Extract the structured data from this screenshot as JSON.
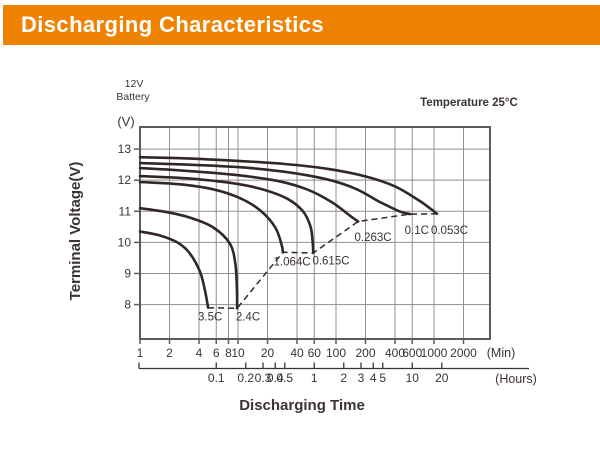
{
  "banner": {
    "title": "Discharging Characteristics"
  },
  "colors": {
    "accent": "#ef8200",
    "title_text": "#ffffff",
    "curve": "#312826",
    "grid": "#8f8f8f",
    "axis_box": "#5c5c5c",
    "text": "#3b3331"
  },
  "annotations": {
    "battery_line1": "12V",
    "battery_line2": "Battery",
    "temperature": "Temperature 25°C",
    "y_unit": "(V)",
    "x_unit_min": "(Min)",
    "x_unit_hours": "(Hours)"
  },
  "chart_data": {
    "type": "line",
    "title": "Discharging Characteristics",
    "xlabel": "Discharging Time",
    "ylabel": "Terminal Voltage(V)",
    "x_scale": "log",
    "x_range_minutes": [
      1,
      3728
    ],
    "y_range_volts": [
      6.9,
      13.71
    ],
    "grid": true,
    "y_ticks": [
      8,
      9,
      10,
      11,
      12,
      13
    ],
    "minute_ticks": [
      {
        "t": 1,
        "label": "1"
      },
      {
        "t": 2,
        "label": "2"
      },
      {
        "t": 4,
        "label": "4"
      },
      {
        "t": 6,
        "label": "6"
      },
      {
        "t": 8,
        "label": "8"
      },
      {
        "t": 10,
        "label": "10"
      },
      {
        "t": 20,
        "label": "20"
      },
      {
        "t": 40,
        "label": "40"
      },
      {
        "t": 60,
        "label": "60"
      },
      {
        "t": 100,
        "label": "100"
      },
      {
        "t": 200,
        "label": "200"
      },
      {
        "t": 400,
        "label": "400"
      },
      {
        "t": 600,
        "label": "600"
      },
      {
        "t": 1000,
        "label": "1000"
      },
      {
        "t": 2000,
        "label": "2000"
      }
    ],
    "hour_ticks": [
      {
        "h": 0.1,
        "label": "0.1"
      },
      {
        "h": 0.2,
        "label": "0.2"
      },
      {
        "h": 0.3,
        "label": "0.3"
      },
      {
        "h": 0.4,
        "label": "0.4"
      },
      {
        "h": 0.5,
        "label": "0.5"
      },
      {
        "h": 1,
        "label": "1"
      },
      {
        "h": 2,
        "label": "2"
      },
      {
        "h": 3,
        "label": "3"
      },
      {
        "h": 4,
        "label": "4"
      },
      {
        "h": 5,
        "label": "5"
      },
      {
        "h": 10,
        "label": "10"
      },
      {
        "h": 20,
        "label": "20"
      }
    ],
    "series": [
      {
        "name": "0.053C",
        "label": "0.053C",
        "label_at": {
          "t": 1440,
          "v": 10.4
        },
        "points": [
          [
            1,
            12.74
          ],
          [
            3,
            12.7
          ],
          [
            10,
            12.62
          ],
          [
            30,
            12.52
          ],
          [
            80,
            12.37
          ],
          [
            200,
            12.12
          ],
          [
            400,
            11.8
          ],
          [
            700,
            11.35
          ],
          [
            950,
            11.05
          ],
          [
            1070,
            10.92
          ]
        ]
      },
      {
        "name": "0.1C",
        "label": "0.1C",
        "label_at": {
          "t": 667,
          "v": 10.4
        },
        "points": [
          [
            1,
            12.55
          ],
          [
            3,
            12.5
          ],
          [
            10,
            12.42
          ],
          [
            30,
            12.27
          ],
          [
            80,
            12.03
          ],
          [
            160,
            11.72
          ],
          [
            280,
            11.3
          ],
          [
            450,
            10.99
          ],
          [
            570,
            10.91
          ]
        ]
      },
      {
        "name": "0.263C",
        "label": "0.263C",
        "label_at": {
          "t": 239,
          "v": 10.18
        },
        "points": [
          [
            1,
            12.39
          ],
          [
            3,
            12.3
          ],
          [
            10,
            12.16
          ],
          [
            25,
            11.98
          ],
          [
            50,
            11.71
          ],
          [
            90,
            11.3
          ],
          [
            140,
            10.85
          ],
          [
            168,
            10.67
          ]
        ]
      },
      {
        "name": "0.615C",
        "label": "0.615C",
        "label_at": {
          "t": 88.9,
          "v": 9.42
        },
        "points": [
          [
            1,
            12.13
          ],
          [
            3,
            12.06
          ],
          [
            9,
            11.9
          ],
          [
            18,
            11.7
          ],
          [
            32,
            11.4
          ],
          [
            46,
            11.0
          ],
          [
            55,
            10.5
          ],
          [
            58,
            9.95
          ],
          [
            58.5,
            9.66
          ]
        ]
      },
      {
        "name": "1.064C",
        "label": "1.064C",
        "label_at": {
          "t": 35.6,
          "v": 9.38
        },
        "points": [
          [
            1,
            11.94
          ],
          [
            2.5,
            11.87
          ],
          [
            5.5,
            11.71
          ],
          [
            10.5,
            11.42
          ],
          [
            17,
            11.02
          ],
          [
            24,
            10.48
          ],
          [
            28,
            9.9
          ],
          [
            28.7,
            9.68
          ]
        ]
      },
      {
        "name": "2.4C",
        "label": "2.4C",
        "label_at": {
          "t": 12.65,
          "v": 7.62
        },
        "points": [
          [
            1,
            11.1
          ],
          [
            1.9,
            10.97
          ],
          [
            3.2,
            10.8
          ],
          [
            5.6,
            10.48
          ],
          [
            8.3,
            9.95
          ],
          [
            9.4,
            9.3
          ],
          [
            9.75,
            8.5
          ],
          [
            9.8,
            7.88
          ]
        ]
      },
      {
        "name": "3.5C",
        "label": "3.5C",
        "label_at": {
          "t": 5.2,
          "v": 7.62
        },
        "points": [
          [
            1,
            10.35
          ],
          [
            1.6,
            10.22
          ],
          [
            2.4,
            10.0
          ],
          [
            3.2,
            9.66
          ],
          [
            4.1,
            9.05
          ],
          [
            4.6,
            8.45
          ],
          [
            4.95,
            7.9
          ]
        ]
      }
    ],
    "cutoff_line": {
      "style": "dashed",
      "points": [
        [
          4.95,
          7.9
        ],
        [
          9.8,
          7.88
        ],
        [
          28.7,
          9.68
        ],
        [
          58.5,
          9.66
        ],
        [
          168,
          10.67
        ],
        [
          570,
          10.91
        ],
        [
          1070,
          10.92
        ]
      ]
    }
  }
}
